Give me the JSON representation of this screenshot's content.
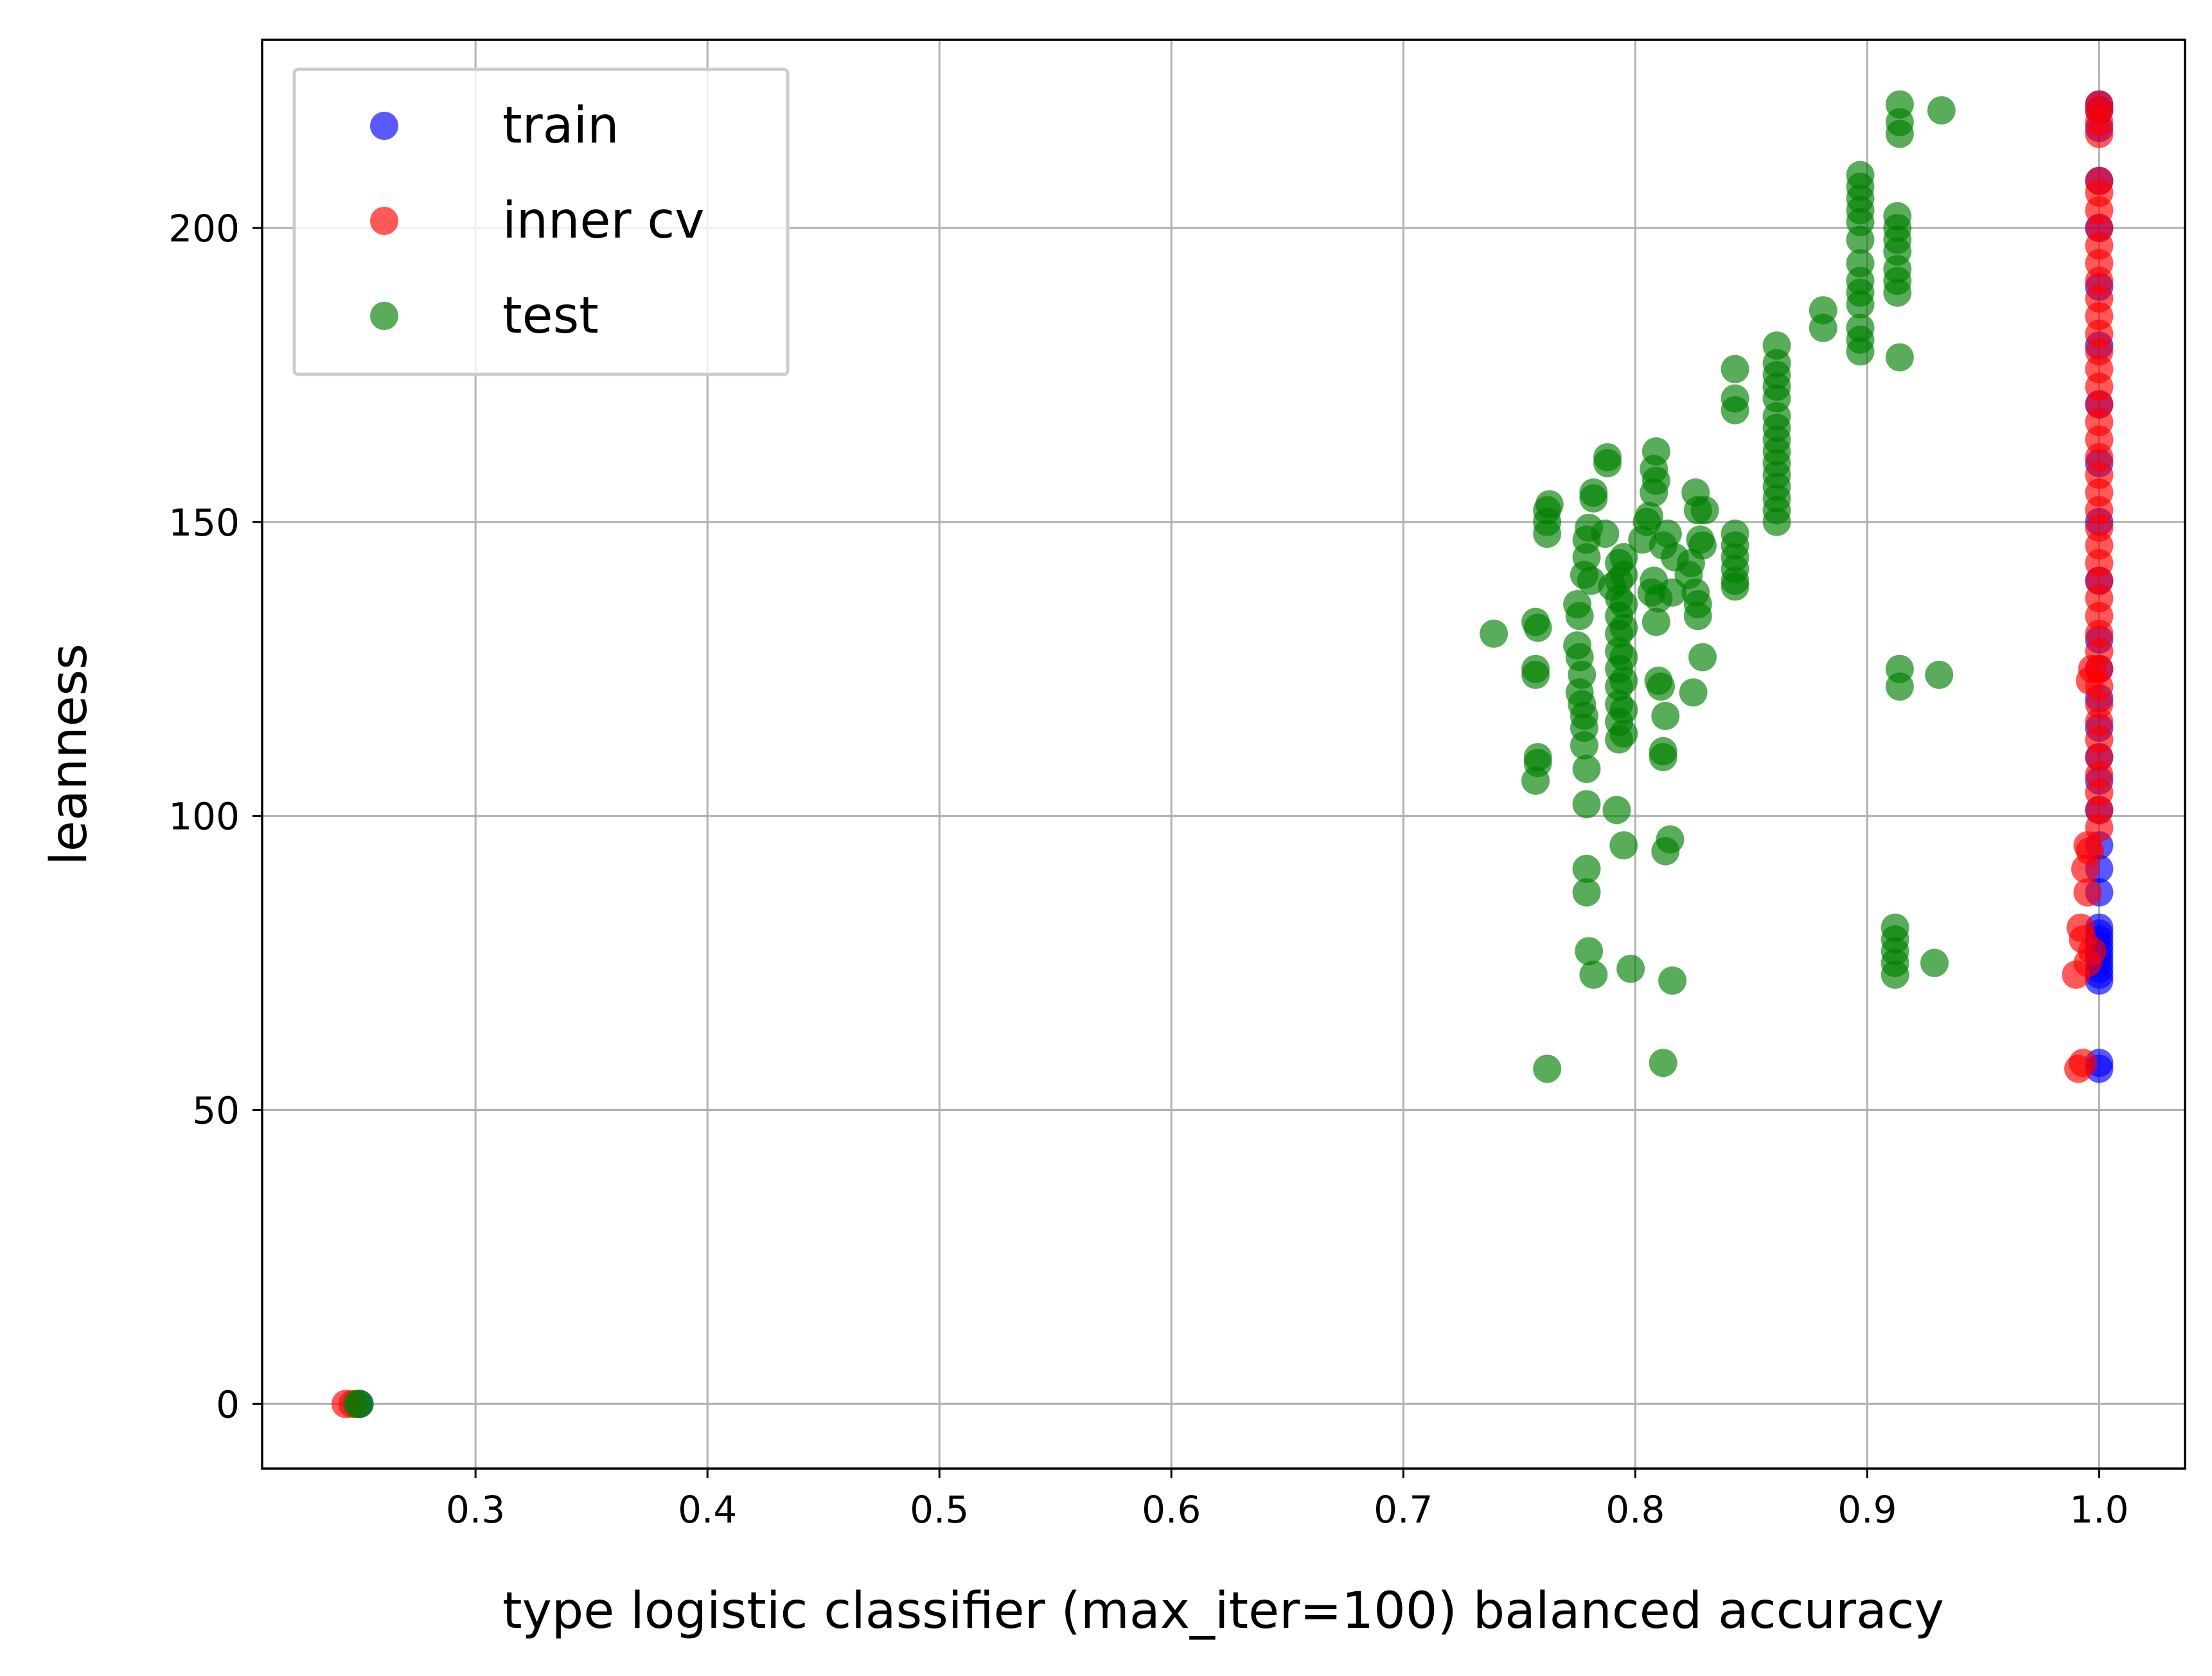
{
  "chart_data": {
    "type": "scatter",
    "title": "",
    "xlabel": "type logistic classifier (max_iter=100) balanced accuracy",
    "ylabel": "leanness",
    "xlim": [
      0.208,
      1.037
    ],
    "ylim": [
      -11,
      232
    ],
    "x_ticks": [
      0.3,
      0.4,
      0.5,
      0.6,
      0.7,
      0.8,
      0.9,
      1.0
    ],
    "x_tick_labels": [
      "0.3",
      "0.4",
      "0.5",
      "0.6",
      "0.7",
      "0.8",
      "0.9",
      "1.0"
    ],
    "y_ticks": [
      0,
      50,
      100,
      150,
      200
    ],
    "y_tick_labels": [
      "0",
      "50",
      "100",
      "150",
      "200"
    ],
    "grid": true,
    "legend_position": "upper-left",
    "series": [
      {
        "name": "train",
        "color": "#0000ff",
        "points": [
          [
            0.25,
            0
          ],
          [
            1.0,
            57
          ],
          [
            1.0,
            58
          ],
          [
            1.0,
            72
          ],
          [
            1.0,
            73
          ],
          [
            1.0,
            74
          ],
          [
            1.0,
            75
          ],
          [
            1.0,
            76
          ],
          [
            1.0,
            77
          ],
          [
            1.0,
            78
          ],
          [
            1.0,
            79
          ],
          [
            1.0,
            80
          ],
          [
            1.0,
            81
          ],
          [
            1.0,
            87
          ],
          [
            1.0,
            91
          ],
          [
            1.0,
            95
          ],
          [
            1.0,
            101
          ],
          [
            1.0,
            106
          ],
          [
            1.0,
            110
          ],
          [
            1.0,
            115
          ],
          [
            1.0,
            120
          ],
          [
            1.0,
            125
          ],
          [
            1.0,
            130
          ],
          [
            1.0,
            140
          ],
          [
            1.0,
            150
          ],
          [
            1.0,
            160
          ],
          [
            1.0,
            170
          ],
          [
            1.0,
            180
          ],
          [
            1.0,
            190
          ],
          [
            1.0,
            200
          ],
          [
            1.0,
            208
          ],
          [
            1.0,
            217
          ],
          [
            1.0,
            220
          ],
          [
            1.0,
            221
          ]
        ]
      },
      {
        "name": "inner cv",
        "color": "#ff0000",
        "points": [
          [
            0.244,
            0
          ],
          [
            0.247,
            0
          ],
          [
            0.99,
            73
          ],
          [
            0.995,
            75
          ],
          [
            0.997,
            77
          ],
          [
            0.993,
            79
          ],
          [
            0.992,
            81
          ],
          [
            0.991,
            57
          ],
          [
            0.993,
            58
          ],
          [
            0.995,
            87
          ],
          [
            0.994,
            91
          ],
          [
            0.996,
            94
          ],
          [
            0.995,
            95
          ],
          [
            0.996,
            123
          ],
          [
            0.997,
            125
          ],
          [
            1.0,
            98
          ],
          [
            1.0,
            101
          ],
          [
            1.0,
            104
          ],
          [
            1.0,
            107
          ],
          [
            1.0,
            110
          ],
          [
            1.0,
            113
          ],
          [
            1.0,
            116
          ],
          [
            1.0,
            119
          ],
          [
            1.0,
            122
          ],
          [
            1.0,
            125
          ],
          [
            1.0,
            128
          ],
          [
            1.0,
            131
          ],
          [
            1.0,
            134
          ],
          [
            1.0,
            137
          ],
          [
            1.0,
            140
          ],
          [
            1.0,
            143
          ],
          [
            1.0,
            146
          ],
          [
            1.0,
            149
          ],
          [
            1.0,
            152
          ],
          [
            1.0,
            155
          ],
          [
            1.0,
            158
          ],
          [
            1.0,
            161
          ],
          [
            1.0,
            164
          ],
          [
            1.0,
            167
          ],
          [
            1.0,
            170
          ],
          [
            1.0,
            173
          ],
          [
            1.0,
            176
          ],
          [
            1.0,
            179
          ],
          [
            1.0,
            182
          ],
          [
            1.0,
            185
          ],
          [
            1.0,
            188
          ],
          [
            1.0,
            191
          ],
          [
            1.0,
            194
          ],
          [
            1.0,
            197
          ],
          [
            1.0,
            200
          ],
          [
            1.0,
            203
          ],
          [
            1.0,
            206
          ],
          [
            1.0,
            208
          ],
          [
            1.0,
            216
          ],
          [
            1.0,
            218
          ],
          [
            1.0,
            220
          ],
          [
            1.0,
            221
          ]
        ]
      },
      {
        "name": "test",
        "color": "#008000",
        "points": [
          [
            0.25,
            0
          ],
          [
            0.249,
            0
          ],
          [
            0.739,
            131
          ],
          [
            0.757,
            133
          ],
          [
            0.758,
            132
          ],
          [
            0.757,
            125
          ],
          [
            0.757,
            124
          ],
          [
            0.758,
            110
          ],
          [
            0.758,
            109
          ],
          [
            0.757,
            106
          ],
          [
            0.762,
            57
          ],
          [
            0.762,
            152
          ],
          [
            0.762,
            150
          ],
          [
            0.762,
            148
          ],
          [
            0.763,
            153
          ],
          [
            0.775,
            136
          ],
          [
            0.776,
            134
          ],
          [
            0.775,
            129
          ],
          [
            0.776,
            127
          ],
          [
            0.777,
            124
          ],
          [
            0.776,
            121
          ],
          [
            0.777,
            119
          ],
          [
            0.778,
            117
          ],
          [
            0.778,
            115
          ],
          [
            0.778,
            112
          ],
          [
            0.779,
            108
          ],
          [
            0.779,
            102
          ],
          [
            0.779,
            91
          ],
          [
            0.779,
            87
          ],
          [
            0.78,
            77
          ],
          [
            0.782,
            73
          ],
          [
            0.778,
            141
          ],
          [
            0.779,
            144
          ],
          [
            0.779,
            147
          ],
          [
            0.78,
            149
          ],
          [
            0.781,
            140
          ],
          [
            0.782,
            154
          ],
          [
            0.782,
            155
          ],
          [
            0.788,
            160
          ],
          [
            0.788,
            161
          ],
          [
            0.787,
            148
          ],
          [
            0.79,
            139
          ],
          [
            0.792,
            101
          ],
          [
            0.795,
            95
          ],
          [
            0.798,
            74
          ],
          [
            0.793,
            113
          ],
          [
            0.793,
            116
          ],
          [
            0.793,
            119
          ],
          [
            0.793,
            122
          ],
          [
            0.793,
            125
          ],
          [
            0.793,
            128
          ],
          [
            0.793,
            131
          ],
          [
            0.793,
            134
          ],
          [
            0.793,
            137
          ],
          [
            0.793,
            140
          ],
          [
            0.793,
            143
          ],
          [
            0.795,
            114
          ],
          [
            0.795,
            118
          ],
          [
            0.795,
            123
          ],
          [
            0.795,
            127
          ],
          [
            0.795,
            132
          ],
          [
            0.795,
            136
          ],
          [
            0.795,
            141
          ],
          [
            0.795,
            144
          ],
          [
            0.803,
            147
          ],
          [
            0.805,
            150
          ],
          [
            0.806,
            151
          ],
          [
            0.807,
            138
          ],
          [
            0.808,
            140
          ],
          [
            0.808,
            155
          ],
          [
            0.809,
            157
          ],
          [
            0.808,
            159
          ],
          [
            0.809,
            162
          ],
          [
            0.809,
            133
          ],
          [
            0.81,
            137
          ],
          [
            0.81,
            123
          ],
          [
            0.811,
            122
          ],
          [
            0.812,
            111
          ],
          [
            0.812,
            110
          ],
          [
            0.813,
            117
          ],
          [
            0.813,
            94
          ],
          [
            0.815,
            96
          ],
          [
            0.812,
            58
          ],
          [
            0.816,
            72
          ],
          [
            0.812,
            146
          ],
          [
            0.814,
            148
          ],
          [
            0.816,
            138
          ],
          [
            0.817,
            144
          ],
          [
            0.823,
            141
          ],
          [
            0.824,
            143
          ],
          [
            0.825,
            121
          ],
          [
            0.826,
            155
          ],
          [
            0.827,
            152
          ],
          [
            0.826,
            138
          ],
          [
            0.827,
            136
          ],
          [
            0.827,
            134
          ],
          [
            0.828,
            147
          ],
          [
            0.829,
            127
          ],
          [
            0.829,
            146
          ],
          [
            0.83,
            152
          ],
          [
            0.843,
            176
          ],
          [
            0.843,
            171
          ],
          [
            0.843,
            169
          ],
          [
            0.843,
            148
          ],
          [
            0.843,
            146
          ],
          [
            0.843,
            144
          ],
          [
            0.843,
            142
          ],
          [
            0.843,
            140
          ],
          [
            0.843,
            139
          ],
          [
            0.861,
            150
          ],
          [
            0.861,
            152
          ],
          [
            0.861,
            154
          ],
          [
            0.861,
            156
          ],
          [
            0.861,
            158
          ],
          [
            0.861,
            160
          ],
          [
            0.861,
            162
          ],
          [
            0.861,
            164
          ],
          [
            0.861,
            166
          ],
          [
            0.861,
            168
          ],
          [
            0.861,
            171
          ],
          [
            0.861,
            173
          ],
          [
            0.861,
            175
          ],
          [
            0.861,
            177
          ],
          [
            0.861,
            180
          ],
          [
            0.881,
            186
          ],
          [
            0.881,
            183
          ],
          [
            0.897,
            179
          ],
          [
            0.897,
            181
          ],
          [
            0.897,
            183
          ],
          [
            0.897,
            187
          ],
          [
            0.897,
            189
          ],
          [
            0.897,
            191
          ],
          [
            0.897,
            194
          ],
          [
            0.897,
            198
          ],
          [
            0.897,
            201
          ],
          [
            0.897,
            203
          ],
          [
            0.897,
            205
          ],
          [
            0.897,
            207
          ],
          [
            0.897,
            209
          ],
          [
            0.912,
            73
          ],
          [
            0.912,
            75
          ],
          [
            0.912,
            77
          ],
          [
            0.912,
            79
          ],
          [
            0.912,
            81
          ],
          [
            0.914,
            122
          ],
          [
            0.914,
            125
          ],
          [
            0.914,
            178
          ],
          [
            0.913,
            189
          ],
          [
            0.913,
            191
          ],
          [
            0.913,
            193
          ],
          [
            0.913,
            196
          ],
          [
            0.913,
            198
          ],
          [
            0.913,
            200
          ],
          [
            0.913,
            202
          ],
          [
            0.914,
            216
          ],
          [
            0.914,
            218
          ],
          [
            0.914,
            221
          ],
          [
            0.929,
            75
          ],
          [
            0.931,
            124
          ],
          [
            0.932,
            220
          ]
        ]
      }
    ]
  }
}
